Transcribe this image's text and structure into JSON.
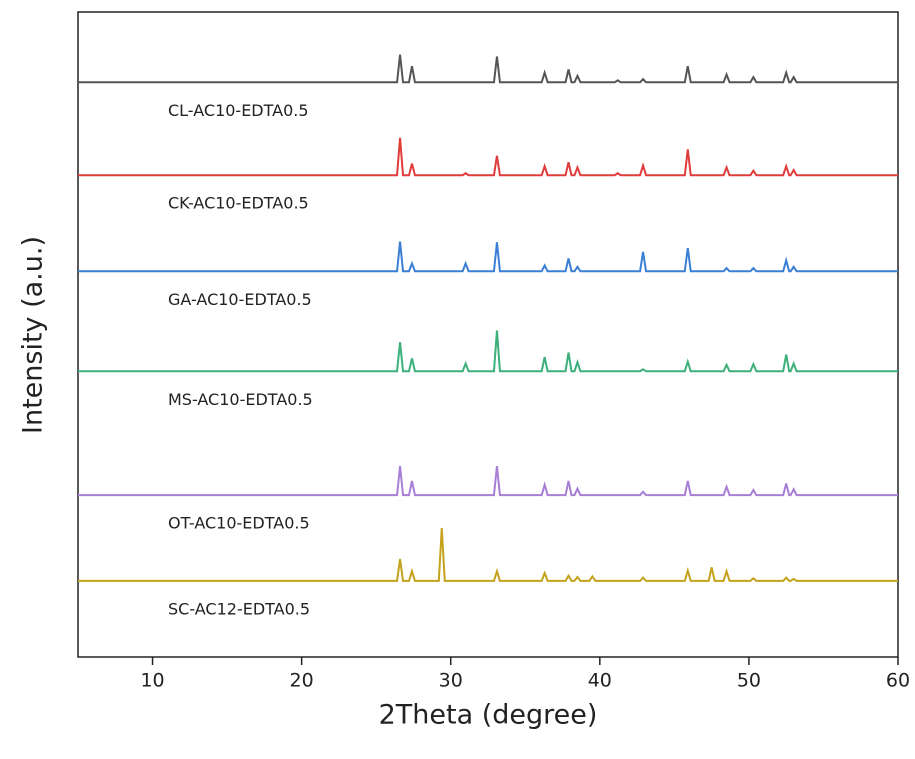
{
  "chart_data": {
    "type": "line",
    "xlabel": "2Theta (degree)",
    "ylabel": "Intensity (a.u.)",
    "xlim": [
      5,
      60
    ],
    "ylim": [
      0,
      100
    ],
    "xticks": [
      10,
      20,
      30,
      40,
      50,
      60
    ],
    "x": [
      5,
      26.4,
      26.6,
      26.8,
      27.2,
      27.4,
      27.6,
      29.2,
      29.4,
      29.6,
      30.8,
      31.0,
      31.2,
      32.9,
      33.1,
      33.3,
      36.1,
      36.3,
      36.5,
      37.7,
      37.9,
      38.1,
      38.3,
      38.5,
      38.7,
      39.3,
      39.5,
      39.7,
      41.0,
      41.2,
      41.4,
      42.7,
      42.9,
      43.1,
      45.7,
      45.9,
      46.1,
      47.3,
      47.5,
      47.7,
      48.3,
      48.5,
      48.7,
      50.1,
      50.3,
      50.5,
      52.3,
      52.5,
      52.7,
      52.8,
      53.0,
      53.2,
      60
    ],
    "series": [
      {
        "name": "CL-AC10-EDTA0.5",
        "color": "#555555",
        "values": [
          89.1,
          89.1,
          93.4,
          89.1,
          89.1,
          91.6,
          89.1,
          89.1,
          89.1,
          89.1,
          89.1,
          89.1,
          89.1,
          89.1,
          93.1,
          89.1,
          89.1,
          90.6,
          89.1,
          89.1,
          91.1,
          89.1,
          89.1,
          90.1,
          89.1,
          89.1,
          89.1,
          89.1,
          89.1,
          89.4,
          89.1,
          89.1,
          89.6,
          89.1,
          89.1,
          91.6,
          89.1,
          89.1,
          89.1,
          89.1,
          89.1,
          90.3,
          89.1,
          89.1,
          89.9,
          89.1,
          89.1,
          90.6,
          89.1,
          89.1,
          89.9,
          89.1,
          89.1
        ]
      },
      {
        "name": "CK-AC10-EDTA0.5",
        "color": "#e03c3c",
        "values": [
          74.7,
          74.7,
          80.5,
          74.7,
          74.7,
          76.5,
          74.7,
          74.7,
          74.7,
          74.7,
          74.7,
          75.0,
          74.7,
          74.7,
          77.7,
          74.7,
          74.7,
          76.1,
          74.7,
          74.7,
          76.7,
          74.7,
          74.7,
          75.9,
          74.7,
          74.7,
          74.7,
          74.7,
          74.7,
          75.0,
          74.7,
          74.7,
          76.2,
          74.7,
          74.7,
          78.7,
          74.7,
          74.7,
          74.7,
          74.7,
          74.7,
          75.9,
          74.7,
          74.7,
          75.4,
          74.7,
          74.7,
          76.1,
          74.7,
          74.7,
          75.5,
          74.7,
          74.7
        ]
      },
      {
        "name": "GA-AC10-EDTA0.5",
        "color": "#3a7fd5",
        "values": [
          59.8,
          59.8,
          64.4,
          59.8,
          59.8,
          61.0,
          59.8,
          59.8,
          59.8,
          59.8,
          59.8,
          61.0,
          59.8,
          59.8,
          64.3,
          59.8,
          59.8,
          60.7,
          59.8,
          59.8,
          61.8,
          59.8,
          59.8,
          60.5,
          59.8,
          59.8,
          59.8,
          59.8,
          59.8,
          59.8,
          59.8,
          59.8,
          62.8,
          59.8,
          59.8,
          63.4,
          59.8,
          59.8,
          59.8,
          59.8,
          59.8,
          60.3,
          59.8,
          59.8,
          60.3,
          59.8,
          59.8,
          61.5,
          59.8,
          59.8,
          60.5,
          59.8,
          59.8
        ]
      },
      {
        "name": "MS-AC10-EDTA0.5",
        "color": "#3db07a",
        "values": [
          44.3,
          44.3,
          48.8,
          44.3,
          44.3,
          46.3,
          44.3,
          44.3,
          44.3,
          44.3,
          44.3,
          45.5,
          44.3,
          44.3,
          50.6,
          44.3,
          44.3,
          46.5,
          44.3,
          44.3,
          47.2,
          44.3,
          44.3,
          45.7,
          44.3,
          44.3,
          44.3,
          44.3,
          44.3,
          44.3,
          44.3,
          44.3,
          44.6,
          44.3,
          44.3,
          45.8,
          44.3,
          44.3,
          44.3,
          44.3,
          44.3,
          45.3,
          44.3,
          44.3,
          45.4,
          44.3,
          44.3,
          46.9,
          44.3,
          44.3,
          45.5,
          44.3,
          44.3
        ]
      },
      {
        "name": "OT-AC10-EDTA0.5",
        "color": "#a77fd6",
        "values": [
          25.1,
          25.1,
          29.6,
          25.1,
          25.1,
          27.3,
          25.1,
          25.1,
          25.1,
          25.1,
          25.1,
          25.1,
          25.1,
          25.1,
          29.6,
          25.1,
          25.1,
          26.7,
          25.1,
          25.1,
          27.3,
          25.1,
          25.1,
          26.1,
          25.1,
          25.1,
          25.1,
          25.1,
          25.1,
          25.1,
          25.1,
          25.1,
          25.6,
          25.1,
          25.1,
          27.3,
          25.1,
          25.1,
          25.1,
          25.1,
          25.1,
          26.4,
          25.1,
          25.1,
          25.9,
          25.1,
          25.1,
          26.9,
          25.1,
          25.1,
          26.0,
          25.1,
          25.1
        ]
      },
      {
        "name": "SC-AC12-EDTA0.5",
        "color": "#c4a21c",
        "values": [
          11.8,
          11.8,
          15.2,
          11.8,
          11.8,
          13.3,
          11.8,
          11.8,
          20.0,
          11.8,
          11.8,
          11.8,
          11.8,
          11.8,
          13.3,
          11.8,
          11.8,
          13.0,
          11.8,
          11.8,
          12.6,
          11.8,
          11.8,
          12.4,
          11.8,
          11.8,
          12.5,
          11.8,
          11.8,
          11.8,
          11.8,
          11.8,
          12.3,
          11.8,
          11.8,
          13.4,
          11.8,
          11.8,
          13.9,
          11.8,
          11.8,
          13.3,
          11.8,
          11.8,
          12.2,
          11.8,
          11.8,
          12.3,
          11.8,
          11.8,
          12.1,
          11.8,
          11.8
        ]
      }
    ]
  }
}
